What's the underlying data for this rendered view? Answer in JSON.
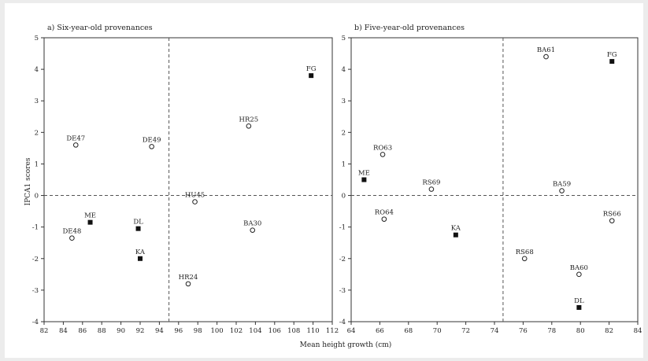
{
  "figure": {
    "ylabel": "IPCA1 scores",
    "xlabel": "Mean height growth (cm)"
  },
  "chart_data": [
    {
      "type": "scatter",
      "title": "a) Six-year-old provenances",
      "xlim": [
        82,
        112
      ],
      "ylim": [
        -4,
        5
      ],
      "xticks": [
        82,
        84,
        86,
        88,
        90,
        92,
        94,
        96,
        98,
        100,
        102,
        104,
        106,
        108,
        110,
        112
      ],
      "yticks": [
        -4,
        -3,
        -2,
        -1,
        0,
        1,
        2,
        3,
        4,
        5
      ],
      "vline": 95,
      "hline": 0,
      "points": [
        {
          "label": "FG",
          "x": 109.8,
          "y": 3.8,
          "marker": "square"
        },
        {
          "label": "HR25",
          "x": 103.3,
          "y": 2.2,
          "marker": "circle"
        },
        {
          "label": "DE47",
          "x": 85.3,
          "y": 1.6,
          "marker": "circle"
        },
        {
          "label": "DE49",
          "x": 93.2,
          "y": 1.55,
          "marker": "circle"
        },
        {
          "label": "HU45",
          "x": 97.7,
          "y": -0.2,
          "marker": "circle"
        },
        {
          "label": "ME",
          "x": 86.8,
          "y": -0.85,
          "marker": "square"
        },
        {
          "label": "DL",
          "x": 91.8,
          "y": -1.05,
          "marker": "square"
        },
        {
          "label": "BA30",
          "x": 103.7,
          "y": -1.1,
          "marker": "circle"
        },
        {
          "label": "DE48",
          "x": 84.9,
          "y": -1.35,
          "marker": "circle"
        },
        {
          "label": "KA",
          "x": 92.0,
          "y": -2.0,
          "marker": "square"
        },
        {
          "label": "HR24",
          "x": 97.0,
          "y": -2.8,
          "marker": "circle"
        }
      ]
    },
    {
      "type": "scatter",
      "title": "b) Five-year-old provenances",
      "xlim": [
        64,
        84
      ],
      "ylim": [
        -4,
        5
      ],
      "xticks": [
        64,
        66,
        68,
        70,
        72,
        74,
        76,
        78,
        80,
        82,
        84
      ],
      "yticks": [
        -4,
        -3,
        -2,
        -1,
        0,
        1,
        2,
        3,
        4,
        5
      ],
      "vline": 74.6,
      "hline": 0,
      "points": [
        {
          "label": "BA61",
          "x": 77.6,
          "y": 4.4,
          "marker": "circle"
        },
        {
          "label": "FG",
          "x": 82.2,
          "y": 4.25,
          "marker": "square"
        },
        {
          "label": "RO63",
          "x": 66.2,
          "y": 1.3,
          "marker": "circle"
        },
        {
          "label": "ME",
          "x": 64.9,
          "y": 0.5,
          "marker": "square"
        },
        {
          "label": "RS69",
          "x": 69.6,
          "y": 0.2,
          "marker": "circle"
        },
        {
          "label": "BA59",
          "x": 78.7,
          "y": 0.15,
          "marker": "circle"
        },
        {
          "label": "RO64",
          "x": 66.3,
          "y": -0.75,
          "marker": "circle"
        },
        {
          "label": "RS66",
          "x": 82.2,
          "y": -0.8,
          "marker": "circle"
        },
        {
          "label": "KA",
          "x": 71.3,
          "y": -1.25,
          "marker": "square"
        },
        {
          "label": "RS68",
          "x": 76.1,
          "y": -2.0,
          "marker": "circle"
        },
        {
          "label": "BA60",
          "x": 79.9,
          "y": -2.5,
          "marker": "circle"
        },
        {
          "label": "DL",
          "x": 79.9,
          "y": -3.55,
          "marker": "square"
        }
      ]
    }
  ]
}
